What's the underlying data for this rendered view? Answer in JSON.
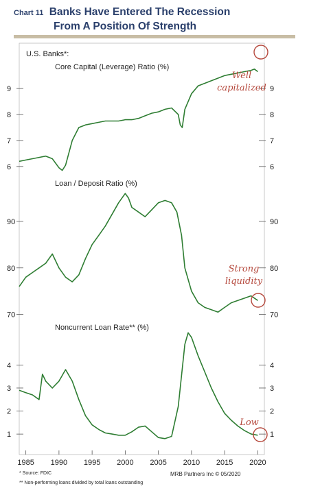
{
  "title": {
    "number": "Chart 11",
    "line1": "Banks Have Entered The Recession",
    "line2": "From A Position Of Strength"
  },
  "colors": {
    "line": "#2e7d32",
    "annotation": "#b5483c",
    "rule": "#c8bda5",
    "title": "#2a3f6b"
  },
  "footer": {
    "source": "* Source: FDIC",
    "note": "** Non-performing loans divided by total loans outstanding",
    "credit": "MRB Partners Inc © 05/2020"
  },
  "chart_data": [
    {
      "type": "line",
      "header": "U.S. Banks*:",
      "title": "Core Capital (Leverage) Ratio (%)",
      "ylim": [
        5.6,
        9.9
      ],
      "yticks": [
        6,
        7,
        8,
        9
      ],
      "xlim": [
        1984,
        2021
      ],
      "series": [
        {
          "x": [
            1984,
            1985,
            1986,
            1987,
            1988,
            1989,
            1990,
            1990.5,
            1991,
            1992,
            1993,
            1994,
            1995,
            1996,
            1997,
            1998,
            1999,
            2000,
            2001,
            2002,
            2003,
            2004,
            2005,
            2006,
            2007,
            2008,
            2008.3,
            2008.6,
            2009,
            2010,
            2011,
            2012,
            2013,
            2014,
            2015,
            2016,
            2017,
            2018,
            2019,
            2019.5,
            2020
          ],
          "y": [
            6.2,
            6.25,
            6.3,
            6.35,
            6.4,
            6.3,
            5.95,
            5.85,
            6.05,
            7.0,
            7.5,
            7.6,
            7.65,
            7.7,
            7.75,
            7.75,
            7.75,
            7.8,
            7.8,
            7.85,
            7.95,
            8.05,
            8.1,
            8.2,
            8.25,
            8.0,
            7.6,
            7.5,
            8.2,
            8.8,
            9.1,
            9.2,
            9.3,
            9.4,
            9.5,
            9.55,
            9.6,
            9.65,
            9.7,
            9.75,
            9.65
          ]
        }
      ],
      "annotation": {
        "lines": [
          "Well",
          "capitalized"
        ]
      }
    },
    {
      "type": "line",
      "title": "Loan / Deposit Ratio (%)",
      "ylim": [
        69.5,
        97.5
      ],
      "yticks": [
        70,
        80,
        90
      ],
      "xlim": [
        1984,
        2021
      ],
      "series": [
        {
          "x": [
            1984,
            1985,
            1986,
            1987,
            1988,
            1989,
            1990,
            1991,
            1992,
            1993,
            1994,
            1995,
            1996,
            1997,
            1998,
            1999,
            2000,
            2000.5,
            2001,
            2002,
            2003,
            2004,
            2005,
            2006,
            2007,
            2007.8,
            2008.5,
            2009,
            2010,
            2011,
            2012,
            2013,
            2014,
            2015,
            2016,
            2017,
            2018,
            2019,
            2020
          ],
          "y": [
            76,
            78,
            79,
            80,
            81,
            83,
            80,
            78,
            77,
            78.5,
            82,
            85,
            87,
            89,
            91.5,
            94,
            96,
            95,
            93,
            92,
            91,
            92.5,
            94,
            94.5,
            94,
            92,
            87,
            80,
            75,
            72.5,
            71.5,
            71,
            70.5,
            71.5,
            72.5,
            73,
            73.5,
            74,
            73
          ]
        }
      ],
      "annotation": {
        "lines": [
          "Strong",
          "liquidity"
        ]
      }
    },
    {
      "type": "line",
      "title": "Noncurrent Loan Rate** (%)",
      "ylim": [
        0.2,
        5.5
      ],
      "yticks": [
        1,
        2,
        3,
        4
      ],
      "xlim": [
        1984,
        2021
      ],
      "series": [
        {
          "x": [
            1984,
            1985,
            1986,
            1987,
            1987.5,
            1988,
            1989,
            1990,
            1991,
            1992,
            1993,
            1994,
            1995,
            1996,
            1997,
            1998,
            1999,
            2000,
            2001,
            2002,
            2003,
            2004,
            2005,
            2006,
            2007,
            2008,
            2009,
            2009.5,
            2010,
            2011,
            2012,
            2013,
            2014,
            2015,
            2016,
            2017,
            2018,
            2019,
            2020
          ],
          "y": [
            2.9,
            2.8,
            2.7,
            2.5,
            3.6,
            3.3,
            3.0,
            3.3,
            3.8,
            3.3,
            2.5,
            1.8,
            1.4,
            1.2,
            1.05,
            1.0,
            0.95,
            0.95,
            1.1,
            1.3,
            1.35,
            1.1,
            0.85,
            0.8,
            0.9,
            2.2,
            4.9,
            5.4,
            5.2,
            4.4,
            3.7,
            3.0,
            2.4,
            1.9,
            1.6,
            1.35,
            1.15,
            1.0,
            0.95
          ]
        }
      ],
      "annotation": {
        "lines": [
          "Low"
        ]
      }
    }
  ],
  "x_axis": {
    "ticks": [
      1985,
      1990,
      1995,
      2000,
      2005,
      2010,
      2015,
      2020
    ],
    "labels": [
      "1985",
      "1990",
      "1995",
      "2000",
      "2005",
      "2010",
      "2015",
      "2020"
    ]
  }
}
